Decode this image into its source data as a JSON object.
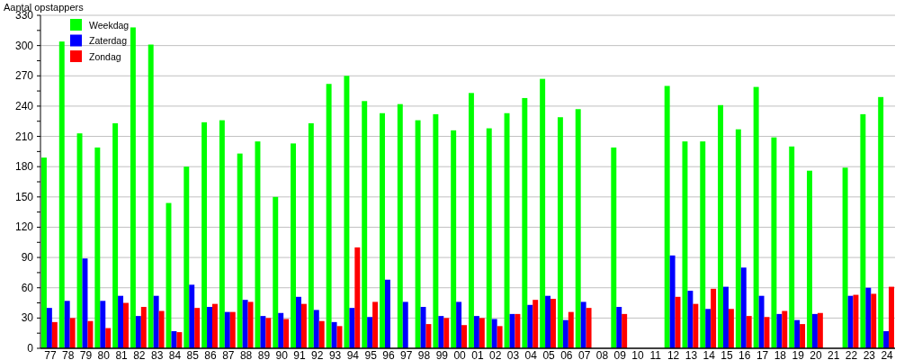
{
  "chart_data": {
    "type": "bar",
    "ylabel": "Aantal opstappers",
    "categories": [
      "77",
      "78",
      "79",
      "80",
      "81",
      "82",
      "83",
      "84",
      "85",
      "86",
      "87",
      "88",
      "89",
      "90",
      "91",
      "92",
      "93",
      "94",
      "95",
      "96",
      "97",
      "98",
      "99",
      "00",
      "01",
      "02",
      "03",
      "04",
      "05",
      "06",
      "07",
      "08",
      "09",
      "10",
      "11",
      "12",
      "13",
      "14",
      "15",
      "16",
      "17",
      "18",
      "19",
      "20",
      "21",
      "22",
      "23",
      "24"
    ],
    "series": [
      {
        "name": "Weekdag",
        "color": "#00ff00",
        "values": [
          189,
          304,
          213,
          199,
          223,
          318,
          301,
          144,
          180,
          224,
          226,
          193,
          205,
          150,
          203,
          223,
          262,
          270,
          245,
          233,
          242,
          226,
          232,
          216,
          253,
          218,
          233,
          248,
          267,
          229,
          237,
          null,
          199,
          null,
          null,
          260,
          205,
          205,
          241,
          217,
          259,
          209,
          200,
          176,
          null,
          179,
          232,
          249
        ]
      },
      {
        "name": "Zaterdag",
        "color": "#0000ff",
        "values": [
          40,
          47,
          89,
          47,
          52,
          32,
          52,
          17,
          63,
          41,
          36,
          48,
          32,
          35,
          51,
          38,
          26,
          40,
          31,
          68,
          46,
          41,
          32,
          46,
          32,
          29,
          34,
          43,
          52,
          28,
          46,
          null,
          41,
          null,
          null,
          92,
          57,
          39,
          61,
          80,
          52,
          34,
          28,
          34,
          null,
          52,
          60,
          17
        ]
      },
      {
        "name": "Zondag",
        "color": "#ff0000",
        "values": [
          26,
          30,
          27,
          20,
          45,
          41,
          37,
          16,
          40,
          44,
          36,
          46,
          30,
          29,
          44,
          27,
          22,
          100,
          46,
          null,
          null,
          24,
          30,
          23,
          30,
          22,
          34,
          48,
          49,
          36,
          40,
          null,
          34,
          null,
          null,
          51,
          44,
          59,
          39,
          32,
          31,
          37,
          24,
          35,
          null,
          53,
          54,
          61
        ]
      }
    ],
    "ylim": [
      0,
      330
    ],
    "yticks": [
      0,
      {
        "value": 15,
        "label": null
      },
      30,
      {
        "value": 45,
        "label": null
      },
      60,
      {
        "value": 75,
        "label": null
      },
      90,
      {
        "value": 105,
        "label": null
      },
      120,
      {
        "value": 135,
        "label": null
      },
      150,
      {
        "value": 165,
        "label": null
      },
      180,
      {
        "value": 195,
        "label": null
      },
      210,
      {
        "value": 225,
        "label": null
      },
      240,
      {
        "value": 255,
        "label": null
      },
      270,
      {
        "value": 285,
        "label": null
      },
      300,
      {
        "value": 315,
        "label": null
      },
      330
    ],
    "grid": "y",
    "legend": "top left"
  }
}
